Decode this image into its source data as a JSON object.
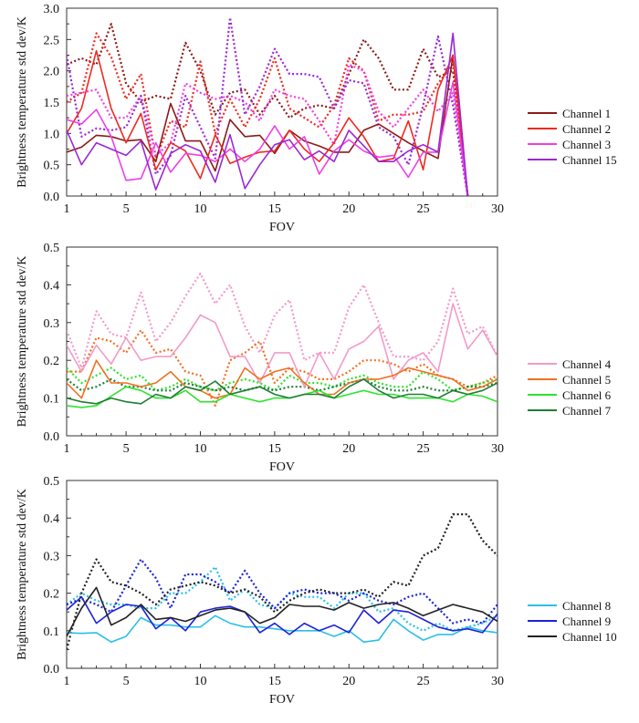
{
  "chart_data": [
    {
      "type": "line",
      "xlabel": "FOV",
      "ylabel": "Brightness temperature std dev/K",
      "xlim": [
        1,
        30
      ],
      "ylim": [
        0,
        3.0
      ],
      "xticks": [
        "1",
        "5",
        "10",
        "15",
        "20",
        "25",
        "30"
      ],
      "yticks": [
        "0.0",
        "0.5",
        "1.0",
        "1.5",
        "2.0",
        "2.5",
        "3.0"
      ],
      "legend_position": "right",
      "x": [
        1,
        2,
        3,
        4,
        5,
        6,
        7,
        8,
        9,
        10,
        11,
        12,
        13,
        14,
        15,
        16,
        17,
        18,
        19,
        20,
        21,
        22,
        23,
        24,
        25,
        26,
        27,
        28
      ],
      "series": [
        {
          "name": "Channel 1",
          "color": "#8b1a1a",
          "style": "solid",
          "values": [
            0.7,
            0.78,
            0.97,
            0.95,
            0.88,
            0.9,
            0.55,
            1.48,
            0.88,
            0.88,
            0.4,
            1.22,
            0.95,
            0.97,
            0.68,
            1.05,
            0.88,
            0.8,
            0.7,
            0.7,
            1.05,
            1.15,
            1.0,
            0.85,
            0.72,
            0.6,
            2.25,
            0.0
          ]
        },
        {
          "name": "Channel 1",
          "color": "#8b1a1a",
          "style": "dotted",
          "values": [
            2.1,
            2.2,
            2.1,
            2.75,
            1.8,
            1.5,
            1.6,
            1.55,
            2.45,
            2.0,
            1.3,
            1.65,
            1.7,
            1.3,
            1.6,
            1.25,
            1.4,
            1.45,
            1.4,
            1.95,
            2.5,
            2.2,
            1.7,
            1.7,
            2.35,
            1.9,
            2.0,
            0.0
          ]
        },
        {
          "name": "Channel 2",
          "color": "#ee2a20",
          "style": "solid",
          "values": [
            1.0,
            1.4,
            2.32,
            1.4,
            0.85,
            1.32,
            0.42,
            0.85,
            0.72,
            0.28,
            0.98,
            0.52,
            0.62,
            0.7,
            0.72,
            1.05,
            0.75,
            0.55,
            0.85,
            1.25,
            0.95,
            0.55,
            0.6,
            1.2,
            0.42,
            1.7,
            2.25,
            0.0
          ]
        },
        {
          "name": "Channel 2",
          "color": "#ee2a20",
          "style": "dotted",
          "values": [
            1.5,
            1.65,
            2.6,
            2.22,
            1.55,
            1.95,
            0.6,
            1.2,
            1.1,
            2.15,
            1.0,
            1.55,
            1.1,
            1.55,
            2.2,
            1.4,
            1.25,
            1.1,
            1.45,
            2.2,
            2.0,
            1.2,
            1.3,
            1.3,
            1.35,
            1.8,
            2.1,
            0.0
          ]
        },
        {
          "name": "Channel 3",
          "color": "#ee3ee8",
          "style": "solid",
          "values": [
            1.22,
            1.15,
            1.38,
            0.95,
            0.25,
            0.28,
            0.85,
            0.38,
            0.68,
            0.65,
            0.55,
            0.75,
            0.55,
            0.75,
            1.12,
            0.75,
            0.95,
            0.35,
            0.72,
            0.9,
            0.72,
            0.62,
            0.65,
            0.3,
            0.7,
            0.7,
            1.82,
            0.0
          ]
        },
        {
          "name": "Channel 3",
          "color": "#ee3ee8",
          "style": "dotted",
          "values": [
            1.6,
            1.65,
            1.7,
            1.25,
            1.25,
            1.6,
            0.65,
            0.85,
            1.8,
            1.65,
            1.55,
            1.6,
            1.5,
            1.2,
            1.7,
            1.6,
            1.55,
            1.2,
            0.82,
            2.1,
            2.0,
            1.35,
            1.1,
            1.4,
            1.7,
            1.35,
            1.65,
            0.0
          ]
        },
        {
          "name": "Channel 15",
          "color": "#9a28d6",
          "style": "solid",
          "values": [
            1.05,
            0.5,
            0.85,
            0.75,
            0.65,
            0.88,
            0.1,
            0.68,
            0.82,
            0.72,
            0.22,
            0.98,
            0.12,
            0.5,
            0.82,
            0.9,
            0.58,
            0.72,
            0.55,
            1.05,
            0.8,
            0.55,
            0.55,
            0.72,
            0.82,
            0.7,
            2.6,
            0.0
          ]
        },
        {
          "name": "Channel 15",
          "color": "#9a28d6",
          "style": "dotted",
          "values": [
            2.25,
            0.95,
            1.08,
            1.05,
            1.1,
            1.6,
            0.35,
            0.65,
            1.6,
            1.1,
            0.6,
            2.85,
            1.3,
            1.75,
            2.35,
            1.95,
            1.95,
            1.9,
            1.4,
            1.85,
            1.8,
            1.1,
            0.95,
            0.5,
            1.45,
            2.55,
            1.45,
            0.0
          ]
        }
      ]
    },
    {
      "type": "line",
      "xlabel": "FOV",
      "ylabel": "Brightness temperature std dev/K",
      "xlim": [
        1,
        30
      ],
      "ylim": [
        0,
        0.5
      ],
      "xticks": [
        "1",
        "5",
        "10",
        "15",
        "20",
        "25",
        "30"
      ],
      "yticks": [
        "0.0",
        "0.1",
        "0.2",
        "0.3",
        "0.4",
        "0.5"
      ],
      "legend_position": "right",
      "x": [
        1,
        2,
        3,
        4,
        5,
        6,
        7,
        8,
        9,
        10,
        11,
        12,
        13,
        14,
        15,
        16,
        17,
        18,
        19,
        20,
        21,
        22,
        23,
        24,
        25,
        26,
        27,
        28,
        29,
        30
      ],
      "series": [
        {
          "name": "Channel 4",
          "color": "#f39ac8",
          "style": "solid",
          "values": [
            0.24,
            0.17,
            0.24,
            0.19,
            0.26,
            0.2,
            0.21,
            0.21,
            0.26,
            0.32,
            0.3,
            0.21,
            0.21,
            0.14,
            0.22,
            0.22,
            0.13,
            0.22,
            0.15,
            0.23,
            0.25,
            0.29,
            0.15,
            0.2,
            0.22,
            0.17,
            0.35,
            0.23,
            0.28,
            0.21
          ]
        },
        {
          "name": "Channel 4",
          "color": "#f39ac8",
          "style": "dotted",
          "values": [
            0.28,
            0.18,
            0.33,
            0.27,
            0.26,
            0.38,
            0.25,
            0.3,
            0.37,
            0.43,
            0.35,
            0.4,
            0.29,
            0.22,
            0.32,
            0.36,
            0.2,
            0.22,
            0.22,
            0.34,
            0.4,
            0.3,
            0.21,
            0.21,
            0.2,
            0.25,
            0.39,
            0.27,
            0.29,
            0.21
          ]
        },
        {
          "name": "Channel 5",
          "color": "#f07020",
          "style": "solid",
          "values": [
            0.14,
            0.1,
            0.2,
            0.14,
            0.14,
            0.13,
            0.14,
            0.17,
            0.13,
            0.12,
            0.1,
            0.11,
            0.18,
            0.15,
            0.17,
            0.18,
            0.14,
            0.11,
            0.11,
            0.14,
            0.15,
            0.15,
            0.16,
            0.18,
            0.17,
            0.16,
            0.15,
            0.12,
            0.13,
            0.15
          ]
        },
        {
          "name": "Channel 5",
          "color": "#f07020",
          "style": "dotted",
          "values": [
            0.17,
            0.17,
            0.26,
            0.25,
            0.22,
            0.28,
            0.22,
            0.23,
            0.17,
            0.16,
            0.08,
            0.2,
            0.22,
            0.25,
            0.14,
            0.18,
            0.17,
            0.15,
            0.15,
            0.17,
            0.2,
            0.2,
            0.19,
            0.17,
            0.19,
            0.16,
            0.15,
            0.13,
            0.14,
            0.16
          ]
        },
        {
          "name": "Channel 6",
          "color": "#2ee32e",
          "style": "solid",
          "values": [
            0.08,
            0.075,
            0.08,
            0.105,
            0.13,
            0.12,
            0.1,
            0.1,
            0.12,
            0.09,
            0.09,
            0.11,
            0.1,
            0.09,
            0.1,
            0.1,
            0.11,
            0.12,
            0.1,
            0.11,
            0.12,
            0.11,
            0.11,
            0.1,
            0.1,
            0.1,
            0.09,
            0.11,
            0.105,
            0.09
          ]
        },
        {
          "name": "Channel 6",
          "color": "#2ee32e",
          "style": "dotted",
          "values": [
            0.18,
            0.14,
            0.16,
            0.18,
            0.15,
            0.16,
            0.12,
            0.13,
            0.15,
            0.13,
            0.12,
            0.14,
            0.15,
            0.14,
            0.12,
            0.16,
            0.14,
            0.14,
            0.13,
            0.15,
            0.16,
            0.14,
            0.13,
            0.13,
            0.17,
            0.15,
            0.12,
            0.13,
            0.14,
            0.15
          ]
        },
        {
          "name": "Channel 7",
          "color": "#1e7e34",
          "style": "solid",
          "values": [
            0.1,
            0.09,
            0.085,
            0.1,
            0.09,
            0.085,
            0.11,
            0.1,
            0.13,
            0.12,
            0.145,
            0.11,
            0.12,
            0.13,
            0.11,
            0.1,
            0.11,
            0.11,
            0.1,
            0.13,
            0.15,
            0.12,
            0.1,
            0.11,
            0.11,
            0.1,
            0.12,
            0.11,
            0.12,
            0.14
          ]
        },
        {
          "name": "Channel 7",
          "color": "#1e7e34",
          "style": "dotted",
          "values": [
            0.15,
            0.12,
            0.13,
            0.15,
            0.13,
            0.13,
            0.12,
            0.12,
            0.14,
            0.13,
            0.12,
            0.13,
            0.12,
            0.13,
            0.12,
            0.13,
            0.13,
            0.12,
            0.13,
            0.14,
            0.15,
            0.13,
            0.12,
            0.12,
            0.13,
            0.12,
            0.12,
            0.13,
            0.13,
            0.14
          ]
        }
      ]
    },
    {
      "type": "line",
      "xlabel": "FOV",
      "ylabel": "Brightness temperature std dev/K",
      "xlim": [
        1,
        30
      ],
      "ylim": [
        0,
        0.5
      ],
      "xticks": [
        "1",
        "5",
        "10",
        "15",
        "20",
        "25",
        "30"
      ],
      "yticks": [
        "0.0",
        "0.1",
        "0.2",
        "0.3",
        "0.4",
        "0.5"
      ],
      "legend_position": "right",
      "x": [
        1,
        2,
        3,
        4,
        5,
        6,
        7,
        8,
        9,
        10,
        11,
        12,
        13,
        14,
        15,
        16,
        17,
        18,
        19,
        20,
        21,
        22,
        23,
        24,
        25,
        26,
        27,
        28,
        29,
        30
      ],
      "series": [
        {
          "name": "Channel 8",
          "color": "#2cbfe6",
          "style": "solid",
          "values": [
            0.095,
            0.093,
            0.095,
            0.07,
            0.085,
            0.135,
            0.115,
            0.115,
            0.11,
            0.11,
            0.14,
            0.12,
            0.11,
            0.11,
            0.105,
            0.1,
            0.1,
            0.1,
            0.085,
            0.1,
            0.07,
            0.075,
            0.13,
            0.1,
            0.075,
            0.09,
            0.09,
            0.11,
            0.1,
            0.095
          ]
        },
        {
          "name": "Channel 8",
          "color": "#2cbfe6",
          "style": "dotted",
          "values": [
            0.17,
            0.2,
            0.18,
            0.17,
            0.17,
            0.16,
            0.16,
            0.2,
            0.2,
            0.23,
            0.27,
            0.18,
            0.21,
            0.17,
            0.16,
            0.2,
            0.19,
            0.19,
            0.16,
            0.2,
            0.2,
            0.15,
            0.16,
            0.12,
            0.1,
            0.12,
            0.1,
            0.11,
            0.12,
            0.14
          ]
        },
        {
          "name": "Channel 9",
          "color": "#1c22d8",
          "style": "solid",
          "values": [
            0.155,
            0.19,
            0.12,
            0.15,
            0.17,
            0.165,
            0.105,
            0.135,
            0.1,
            0.15,
            0.16,
            0.165,
            0.15,
            0.095,
            0.12,
            0.09,
            0.12,
            0.1,
            0.115,
            0.095,
            0.155,
            0.12,
            0.155,
            0.15,
            0.13,
            0.11,
            0.1,
            0.105,
            0.095,
            0.145
          ]
        },
        {
          "name": "Channel 9",
          "color": "#1c22d8",
          "style": "dotted",
          "values": [
            0.17,
            0.185,
            0.17,
            0.15,
            0.22,
            0.29,
            0.24,
            0.16,
            0.25,
            0.25,
            0.23,
            0.2,
            0.26,
            0.2,
            0.16,
            0.2,
            0.21,
            0.2,
            0.2,
            0.18,
            0.2,
            0.18,
            0.17,
            0.19,
            0.2,
            0.16,
            0.12,
            0.13,
            0.12,
            0.17
          ]
        },
        {
          "name": "Channel 10",
          "color": "#222222",
          "style": "solid",
          "values": [
            0.085,
            0.16,
            0.215,
            0.115,
            0.135,
            0.17,
            0.13,
            0.135,
            0.125,
            0.14,
            0.155,
            0.16,
            0.15,
            0.12,
            0.135,
            0.17,
            0.165,
            0.165,
            0.155,
            0.175,
            0.16,
            0.17,
            0.175,
            0.16,
            0.14,
            0.155,
            0.17,
            0.16,
            0.15,
            0.125
          ]
        },
        {
          "name": "Channel 10",
          "color": "#222222",
          "style": "dotted",
          "values": [
            0.05,
            0.2,
            0.29,
            0.23,
            0.22,
            0.2,
            0.17,
            0.21,
            0.22,
            0.23,
            0.22,
            0.2,
            0.21,
            0.19,
            0.15,
            0.18,
            0.2,
            0.21,
            0.2,
            0.2,
            0.21,
            0.19,
            0.23,
            0.22,
            0.3,
            0.32,
            0.41,
            0.41,
            0.34,
            0.3
          ]
        }
      ]
    }
  ],
  "legends": [
    [
      "Channel 1",
      "Channel 2",
      "Channel 3",
      "Channel 15"
    ],
    [
      "Channel 4",
      "Channel 5",
      "Channel 6",
      "Channel 7"
    ],
    [
      "Channel 8",
      "Channel 9",
      "Channel 10"
    ]
  ]
}
